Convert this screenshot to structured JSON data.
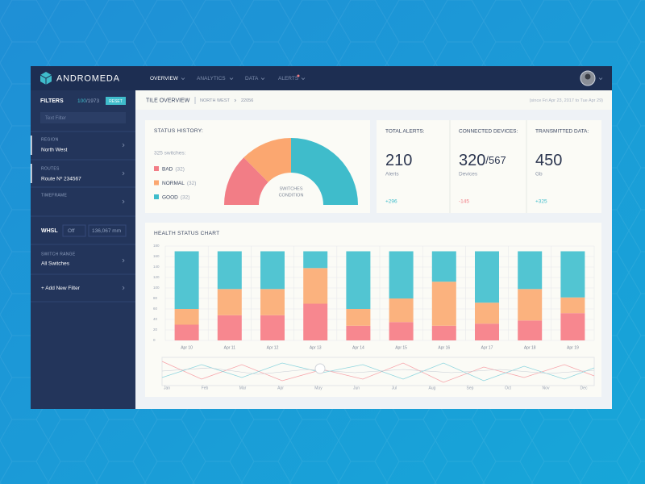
{
  "header": {
    "logo": "ANDROMEDA",
    "nav": [
      "OVERVIEW",
      "ANALYTICS",
      "DATA",
      "ALERTS"
    ]
  },
  "sidebar": {
    "title": "FILTERS",
    "count": "100",
    "total": "/1973",
    "reset": "RESET",
    "search_placeholder": "Text Filter",
    "filters": [
      {
        "label": "REGION",
        "value": "North West"
      },
      {
        "label": "ROUTES",
        "value": "Route Nº 234567"
      },
      {
        "label": "TIMEFRAME"
      }
    ],
    "whsl": {
      "label": "WHSL",
      "toggle": "Off",
      "input": "136,067 mm"
    },
    "switch_range": {
      "label": "SWITCH RANGE",
      "value": "All Switches"
    },
    "add_filter": "+ Add New Filter"
  },
  "breadcrumb": {
    "title": "TILE OVERVIEW",
    "region": "NORTH WEST",
    "id": "22056",
    "range": "(since Fri Apr 23, 2017 to Tue Apr 29)"
  },
  "status_history": {
    "title": "STATUS HISTORY:",
    "subtitle": "325 switches:",
    "center_label": [
      "SWITCHES",
      "CONDITION"
    ],
    "items": [
      {
        "name": "BAD",
        "count": "(32)",
        "color": "#f27d86",
        "share": 25
      },
      {
        "name": "NORMAL",
        "count": "(32)",
        "color": "#fba770",
        "share": 25
      },
      {
        "name": "GOOD",
        "count": "(32)",
        "color": "#3fbccb",
        "share": 50
      }
    ]
  },
  "stats": [
    {
      "title": "TOTAL ALERTS:",
      "value": "210",
      "unit": "Alerts",
      "change": "+296",
      "change_color": "#3fbccb"
    },
    {
      "title": "CONNECTED DEVICES:",
      "value": "320",
      "total": "/567",
      "unit": "Devices",
      "change": "-145",
      "change_color": "#f27d86"
    },
    {
      "title": "TRANSMITTED DATA:",
      "value": "450",
      "unit": "Gb",
      "change": "+325",
      "change_color": "#3fbccb"
    }
  ],
  "chart_data": {
    "type": "bar",
    "stacked": true,
    "title": "HEALTH STATUS CHART",
    "categories": [
      "Apr 10",
      "Apr 11",
      "Apr 12",
      "Apr 13",
      "Apr 14",
      "Apr 15",
      "Apr 16",
      "Apr 17",
      "Apr 18",
      "Apr 19"
    ],
    "series": [
      {
        "name": "BAD",
        "color": "#f7878f",
        "values": [
          30,
          48,
          48,
          70,
          28,
          35,
          28,
          32,
          38,
          52
        ]
      },
      {
        "name": "NORMAL",
        "color": "#fbb27e",
        "values": [
          30,
          50,
          50,
          68,
          32,
          45,
          84,
          40,
          60,
          30
        ]
      },
      {
        "name": "GOOD",
        "color": "#52c5d2",
        "values": [
          110,
          72,
          72,
          32,
          110,
          90,
          58,
          98,
          72,
          88
        ]
      }
    ],
    "ylim": [
      0,
      180
    ],
    "yticks": [
      0,
      20,
      40,
      60,
      80,
      100,
      120,
      140,
      160,
      180
    ],
    "grid": true
  },
  "timeline": {
    "months": [
      "Jan",
      "Feb",
      "Mar",
      "Apr",
      "May",
      "Jun",
      "Jul",
      "Aug",
      "Sep",
      "Oct",
      "Nov",
      "Dec"
    ]
  }
}
